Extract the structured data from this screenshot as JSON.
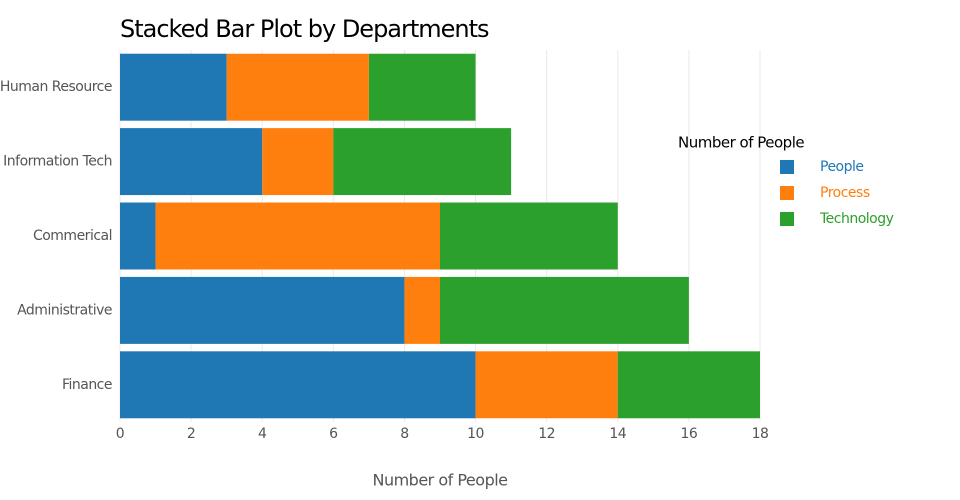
{
  "chart_data": {
    "type": "stacked_bar_horizontal",
    "title": "Stacked Bar Plot by Departments",
    "x_label": "Number of People",
    "legend_title": "Number of People",
    "legend_position": "right",
    "grid": true,
    "categories": [
      "Human Resource",
      "Information Tech",
      "Commerical",
      "Administrative",
      "Finance"
    ],
    "series": [
      {
        "name": "People",
        "color": "#1f77b4",
        "values": [
          3,
          4,
          1,
          8,
          10
        ]
      },
      {
        "name": "Process",
        "color": "#ff7f0e",
        "values": [
          4,
          2,
          8,
          1,
          4
        ]
      },
      {
        "name": "Technology",
        "color": "#2ca02c",
        "values": [
          3,
          5,
          5,
          7,
          4
        ]
      }
    ],
    "xlim": [
      0,
      18
    ],
    "xticks": [
      0,
      2,
      4,
      6,
      8,
      10,
      12,
      14,
      16,
      18
    ]
  }
}
